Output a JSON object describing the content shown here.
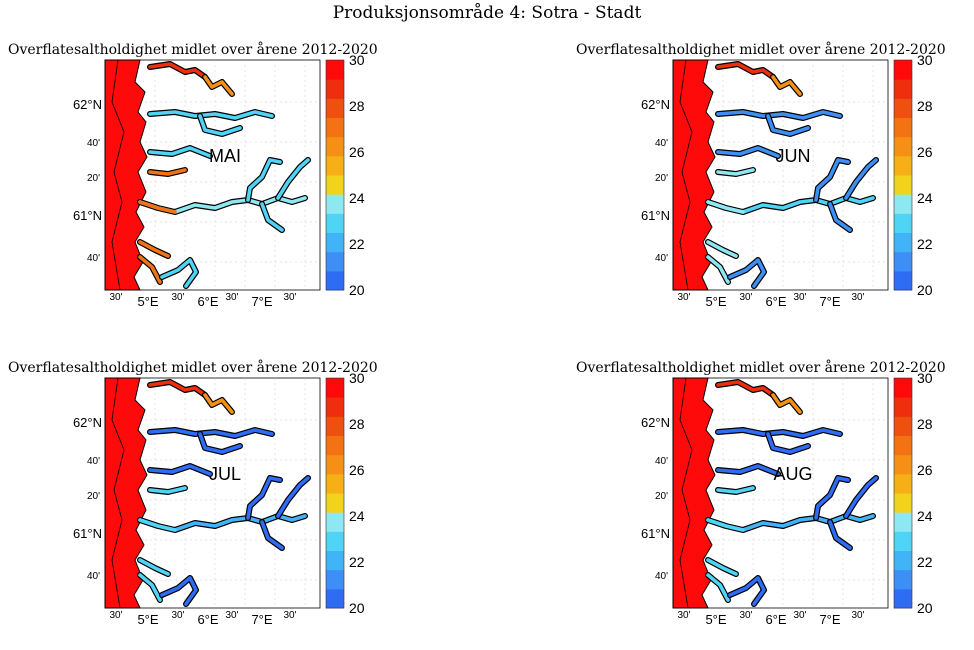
{
  "title": "Produksjonsområde 4: Sotra - Stadt",
  "colors": {
    "ocean": "#ff0a0a",
    "coast_line": "#000000",
    "land": "#ffffff",
    "grid": "#c8c8c8",
    "colormap": [
      "#2f6cf6",
      "#3d8ff5",
      "#41b3f7",
      "#4fd4f5",
      "#8ee8f2",
      "#f1d21c",
      "#f6b016",
      "#f59014",
      "#f37212",
      "#f0500f",
      "#ee2e0c",
      "#ff0a0a"
    ]
  },
  "map": {
    "panel_title": "Overflatesaltholdighet midlet over årene 2012-2020",
    "lat_labels": [
      "62°N",
      "40'",
      "20'",
      "61°N",
      "40'"
    ],
    "lon_labels": [
      "30'",
      "5°E",
      "30'",
      "6°E",
      "30'",
      "7°E",
      "30'"
    ],
    "colorbar": {
      "min": 20,
      "max": 30,
      "ticks": [
        "30",
        "28",
        "26",
        "24",
        "22",
        "20"
      ]
    }
  },
  "panels": [
    {
      "month": "MAI",
      "inner_salinity": 22.5,
      "mid_salinity": 27
    },
    {
      "month": "JUN",
      "inner_salinity": 21,
      "mid_salinity": 24
    },
    {
      "month": "JUL",
      "inner_salinity": 20.5,
      "mid_salinity": 23
    },
    {
      "month": "AUG",
      "inner_salinity": 20.5,
      "mid_salinity": 22.5
    }
  ]
}
